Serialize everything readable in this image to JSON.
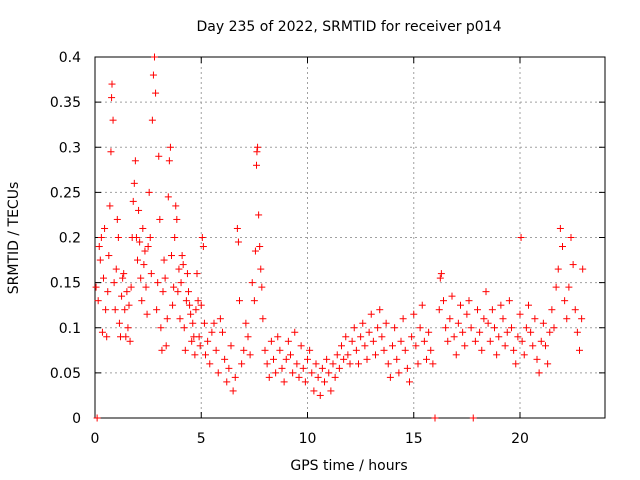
{
  "chart_data": {
    "type": "scatter",
    "title": "Day 235 of 2022, SRMTID for receiver p014",
    "xlabel": "GPS time / hours",
    "ylabel": "SRMTID / TECUs",
    "xlim": [
      0,
      24
    ],
    "ylim": [
      0,
      0.4
    ],
    "x_ticks": [
      0,
      5,
      10,
      15,
      20
    ],
    "x_tick_labels": [
      "0",
      "5",
      "10",
      "15",
      "20"
    ],
    "y_ticks": [
      0,
      0.05,
      0.1,
      0.15,
      0.2,
      0.25,
      0.3,
      0.35,
      0.4
    ],
    "y_tick_labels": [
      "0",
      "0.05",
      "0.1",
      "0.15",
      "0.2",
      "0.25",
      "0.3",
      "0.35",
      "0.4"
    ],
    "grid": true,
    "marker": "+",
    "color": "#ff0000",
    "series": [
      {
        "name": "SRMTID",
        "points": [
          [
            0.05,
            0.145
          ],
          [
            0.1,
            0.0
          ],
          [
            0.15,
            0.13
          ],
          [
            0.2,
            0.19
          ],
          [
            0.25,
            0.175
          ],
          [
            0.3,
            0.2
          ],
          [
            0.35,
            0.095
          ],
          [
            0.4,
            0.155
          ],
          [
            0.45,
            0.21
          ],
          [
            0.5,
            0.12
          ],
          [
            0.55,
            0.09
          ],
          [
            0.6,
            0.14
          ],
          [
            0.65,
            0.18
          ],
          [
            0.7,
            0.235
          ],
          [
            0.75,
            0.295
          ],
          [
            0.78,
            0.355
          ],
          [
            0.8,
            0.37
          ],
          [
            0.85,
            0.33
          ],
          [
            0.9,
            0.15
          ],
          [
            0.95,
            0.12
          ],
          [
            1.0,
            0.165
          ],
          [
            1.05,
            0.22
          ],
          [
            1.1,
            0.2
          ],
          [
            1.15,
            0.105
          ],
          [
            1.2,
            0.09
          ],
          [
            1.25,
            0.135
          ],
          [
            1.3,
            0.155
          ],
          [
            1.35,
            0.16
          ],
          [
            1.4,
            0.12
          ],
          [
            1.45,
            0.09
          ],
          [
            1.5,
            0.14
          ],
          [
            1.55,
            0.1
          ],
          [
            1.6,
            0.125
          ],
          [
            1.65,
            0.085
          ],
          [
            1.7,
            0.145
          ],
          [
            1.75,
            0.2
          ],
          [
            1.8,
            0.24
          ],
          [
            1.85,
            0.26
          ],
          [
            1.9,
            0.285
          ],
          [
            1.95,
            0.2
          ],
          [
            2.0,
            0.175
          ],
          [
            2.05,
            0.23
          ],
          [
            2.1,
            0.195
          ],
          [
            2.15,
            0.155
          ],
          [
            2.2,
            0.13
          ],
          [
            2.25,
            0.21
          ],
          [
            2.3,
            0.17
          ],
          [
            2.35,
            0.185
          ],
          [
            2.4,
            0.145
          ],
          [
            2.45,
            0.115
          ],
          [
            2.5,
            0.19
          ],
          [
            2.55,
            0.25
          ],
          [
            2.6,
            0.2
          ],
          [
            2.65,
            0.16
          ],
          [
            2.7,
            0.33
          ],
          [
            2.75,
            0.38
          ],
          [
            2.8,
            0.4
          ],
          [
            2.85,
            0.36
          ],
          [
            2.9,
            0.12
          ],
          [
            2.95,
            0.15
          ],
          [
            3.0,
            0.29
          ],
          [
            3.05,
            0.22
          ],
          [
            3.1,
            0.1
          ],
          [
            3.15,
            0.075
          ],
          [
            3.2,
            0.14
          ],
          [
            3.25,
            0.175
          ],
          [
            3.3,
            0.155
          ],
          [
            3.35,
            0.08
          ],
          [
            3.4,
            0.11
          ],
          [
            3.45,
            0.245
          ],
          [
            3.5,
            0.285
          ],
          [
            3.55,
            0.3
          ],
          [
            3.6,
            0.18
          ],
          [
            3.65,
            0.125
          ],
          [
            3.7,
            0.145
          ],
          [
            3.75,
            0.2
          ],
          [
            3.8,
            0.235
          ],
          [
            3.85,
            0.22
          ],
          [
            3.9,
            0.14
          ],
          [
            3.95,
            0.165
          ],
          [
            4.0,
            0.11
          ],
          [
            4.05,
            0.15
          ],
          [
            4.1,
            0.18
          ],
          [
            4.15,
            0.17
          ],
          [
            4.2,
            0.1
          ],
          [
            4.25,
            0.075
          ],
          [
            4.3,
            0.13
          ],
          [
            4.35,
            0.16
          ],
          [
            4.4,
            0.14
          ],
          [
            4.45,
            0.125
          ],
          [
            4.5,
            0.115
          ],
          [
            4.55,
            0.085
          ],
          [
            4.6,
            0.105
          ],
          [
            4.65,
            0.09
          ],
          [
            4.7,
            0.07
          ],
          [
            4.75,
            0.12
          ],
          [
            4.8,
            0.16
          ],
          [
            4.85,
            0.13
          ],
          [
            4.9,
            0.09
          ],
          [
            4.95,
            0.08
          ],
          [
            5.0,
            0.125
          ],
          [
            5.05,
            0.2
          ],
          [
            5.1,
            0.19
          ],
          [
            5.15,
            0.105
          ],
          [
            5.2,
            0.07
          ],
          [
            5.3,
            0.085
          ],
          [
            5.4,
            0.06
          ],
          [
            5.5,
            0.095
          ],
          [
            5.6,
            0.105
          ],
          [
            5.7,
            0.075
          ],
          [
            5.8,
            0.05
          ],
          [
            5.9,
            0.11
          ],
          [
            6.0,
            0.095
          ],
          [
            6.1,
            0.065
          ],
          [
            6.2,
            0.04
          ],
          [
            6.3,
            0.055
          ],
          [
            6.4,
            0.08
          ],
          [
            6.5,
            0.03
          ],
          [
            6.6,
            0.045
          ],
          [
            6.7,
            0.21
          ],
          [
            6.75,
            0.195
          ],
          [
            6.8,
            0.13
          ],
          [
            6.9,
            0.06
          ],
          [
            7.0,
            0.075
          ],
          [
            7.1,
            0.105
          ],
          [
            7.2,
            0.09
          ],
          [
            7.3,
            0.07
          ],
          [
            7.4,
            0.15
          ],
          [
            7.5,
            0.13
          ],
          [
            7.55,
            0.185
          ],
          [
            7.6,
            0.28
          ],
          [
            7.62,
            0.295
          ],
          [
            7.65,
            0.3
          ],
          [
            7.7,
            0.225
          ],
          [
            7.75,
            0.19
          ],
          [
            7.8,
            0.165
          ],
          [
            7.85,
            0.145
          ],
          [
            7.9,
            0.11
          ],
          [
            8.0,
            0.075
          ],
          [
            8.1,
            0.06
          ],
          [
            8.2,
            0.045
          ],
          [
            8.3,
            0.085
          ],
          [
            8.4,
            0.065
          ],
          [
            8.5,
            0.05
          ],
          [
            8.6,
            0.09
          ],
          [
            8.7,
            0.075
          ],
          [
            8.8,
            0.055
          ],
          [
            8.9,
            0.04
          ],
          [
            9.0,
            0.065
          ],
          [
            9.1,
            0.085
          ],
          [
            9.2,
            0.07
          ],
          [
            9.3,
            0.05
          ],
          [
            9.4,
            0.095
          ],
          [
            9.5,
            0.06
          ],
          [
            9.6,
            0.045
          ],
          [
            9.7,
            0.08
          ],
          [
            9.8,
            0.055
          ],
          [
            9.9,
            0.04
          ],
          [
            10.0,
            0.065
          ],
          [
            10.1,
            0.075
          ],
          [
            10.2,
            0.05
          ],
          [
            10.3,
            0.03
          ],
          [
            10.4,
            0.06
          ],
          [
            10.5,
            0.045
          ],
          [
            10.6,
            0.025
          ],
          [
            10.7,
            0.055
          ],
          [
            10.8,
            0.04
          ],
          [
            10.9,
            0.065
          ],
          [
            11.0,
            0.05
          ],
          [
            11.1,
            0.03
          ],
          [
            11.2,
            0.06
          ],
          [
            11.3,
            0.045
          ],
          [
            11.4,
            0.07
          ],
          [
            11.5,
            0.055
          ],
          [
            11.6,
            0.08
          ],
          [
            11.7,
            0.065
          ],
          [
            11.8,
            0.09
          ],
          [
            11.9,
            0.07
          ],
          [
            12.0,
            0.06
          ],
          [
            12.1,
            0.085
          ],
          [
            12.2,
            0.1
          ],
          [
            12.3,
            0.075
          ],
          [
            12.4,
            0.06
          ],
          [
            12.5,
            0.09
          ],
          [
            12.6,
            0.105
          ],
          [
            12.7,
            0.08
          ],
          [
            12.8,
            0.065
          ],
          [
            12.9,
            0.095
          ],
          [
            13.0,
            0.115
          ],
          [
            13.1,
            0.085
          ],
          [
            13.2,
            0.07
          ],
          [
            13.3,
            0.1
          ],
          [
            13.4,
            0.12
          ],
          [
            13.5,
            0.09
          ],
          [
            13.6,
            0.075
          ],
          [
            13.7,
            0.105
          ],
          [
            13.8,
            0.06
          ],
          [
            13.9,
            0.045
          ],
          [
            14.0,
            0.08
          ],
          [
            14.1,
            0.1
          ],
          [
            14.2,
            0.065
          ],
          [
            14.3,
            0.05
          ],
          [
            14.4,
            0.085
          ],
          [
            14.5,
            0.11
          ],
          [
            14.6,
            0.075
          ],
          [
            14.7,
            0.055
          ],
          [
            14.8,
            0.04
          ],
          [
            14.9,
            0.09
          ],
          [
            15.0,
            0.115
          ],
          [
            15.1,
            0.08
          ],
          [
            15.2,
            0.06
          ],
          [
            15.3,
            0.1
          ],
          [
            15.4,
            0.125
          ],
          [
            15.5,
            0.085
          ],
          [
            15.6,
            0.065
          ],
          [
            15.7,
            0.095
          ],
          [
            15.8,
            0.075
          ],
          [
            15.9,
            0.06
          ],
          [
            16.0,
            0.0
          ],
          [
            16.2,
            0.12
          ],
          [
            16.25,
            0.155
          ],
          [
            16.3,
            0.16
          ],
          [
            16.4,
            0.13
          ],
          [
            16.5,
            0.1
          ],
          [
            16.6,
            0.085
          ],
          [
            16.7,
            0.11
          ],
          [
            16.8,
            0.135
          ],
          [
            16.9,
            0.09
          ],
          [
            17.0,
            0.07
          ],
          [
            17.1,
            0.105
          ],
          [
            17.2,
            0.125
          ],
          [
            17.3,
            0.095
          ],
          [
            17.4,
            0.08
          ],
          [
            17.5,
            0.115
          ],
          [
            17.6,
            0.13
          ],
          [
            17.7,
            0.1
          ],
          [
            17.8,
            0.0
          ],
          [
            17.9,
            0.085
          ],
          [
            18.0,
            0.12
          ],
          [
            18.1,
            0.095
          ],
          [
            18.2,
            0.075
          ],
          [
            18.3,
            0.11
          ],
          [
            18.4,
            0.14
          ],
          [
            18.5,
            0.105
          ],
          [
            18.6,
            0.085
          ],
          [
            18.7,
            0.12
          ],
          [
            18.8,
            0.1
          ],
          [
            18.9,
            0.07
          ],
          [
            19.0,
            0.09
          ],
          [
            19.1,
            0.125
          ],
          [
            19.2,
            0.11
          ],
          [
            19.3,
            0.08
          ],
          [
            19.4,
            0.095
          ],
          [
            19.5,
            0.13
          ],
          [
            19.6,
            0.1
          ],
          [
            19.7,
            0.075
          ],
          [
            19.8,
            0.06
          ],
          [
            19.9,
            0.09
          ],
          [
            20.0,
            0.115
          ],
          [
            20.05,
            0.2
          ],
          [
            20.1,
            0.085
          ],
          [
            20.2,
            0.07
          ],
          [
            20.3,
            0.1
          ],
          [
            20.4,
            0.125
          ],
          [
            20.5,
            0.095
          ],
          [
            20.6,
            0.08
          ],
          [
            20.7,
            0.11
          ],
          [
            20.8,
            0.065
          ],
          [
            20.9,
            0.05
          ],
          [
            21.0,
            0.085
          ],
          [
            21.1,
            0.105
          ],
          [
            21.2,
            0.08
          ],
          [
            21.3,
            0.06
          ],
          [
            21.4,
            0.095
          ],
          [
            21.5,
            0.12
          ],
          [
            21.6,
            0.1
          ],
          [
            21.7,
            0.145
          ],
          [
            21.8,
            0.165
          ],
          [
            21.9,
            0.21
          ],
          [
            22.0,
            0.19
          ],
          [
            22.1,
            0.13
          ],
          [
            22.2,
            0.11
          ],
          [
            22.3,
            0.145
          ],
          [
            22.4,
            0.2
          ],
          [
            22.5,
            0.17
          ],
          [
            22.6,
            0.12
          ],
          [
            22.7,
            0.095
          ],
          [
            22.8,
            0.075
          ],
          [
            22.9,
            0.11
          ],
          [
            22.95,
            0.165
          ]
        ]
      }
    ]
  }
}
